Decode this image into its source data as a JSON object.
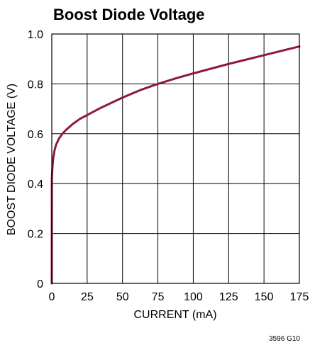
{
  "chart_data": {
    "type": "line",
    "title": "Boost Diode Voltage",
    "xlabel": "CURRENT (mA)",
    "ylabel": "BOOST DIODE VOLTAGE (V)",
    "figure_id": "3596 G10",
    "xlim": [
      0,
      175
    ],
    "ylim": [
      0,
      1.0
    ],
    "x_ticks": [
      0,
      25,
      50,
      75,
      100,
      125,
      150,
      175
    ],
    "x_tick_labels": [
      "0",
      "25",
      "50",
      "75",
      "100",
      "125",
      "150",
      "175"
    ],
    "y_ticks": [
      0,
      0.2,
      0.4,
      0.6,
      0.8,
      1.0
    ],
    "y_tick_labels": [
      "0",
      "0.2",
      "0.4",
      "0.6",
      "0.8",
      "1.0"
    ],
    "grid": true,
    "series_color": "#8b1a3c",
    "series": [
      {
        "x": [
          0,
          0.05,
          0.2,
          0.5,
          1,
          2,
          3,
          5,
          7.5,
          10,
          15,
          20,
          25,
          35,
          50,
          62.5,
          75,
          87.5,
          100,
          125,
          150,
          175
        ],
        "y": [
          0.0,
          0.41,
          0.44,
          0.47,
          0.5,
          0.535,
          0.555,
          0.58,
          0.6,
          0.615,
          0.64,
          0.66,
          0.675,
          0.705,
          0.745,
          0.775,
          0.8,
          0.822,
          0.842,
          0.88,
          0.915,
          0.95
        ]
      }
    ]
  }
}
